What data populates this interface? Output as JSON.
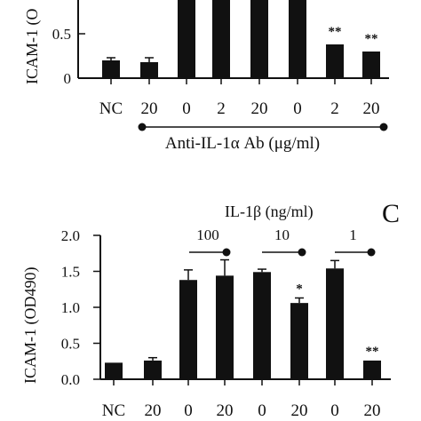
{
  "chart_data": [
    {
      "panel": "top (cropped)",
      "type": "bar",
      "ylabel": "ICAM-1 (O",
      "yticks": [
        "0.5",
        "0"
      ],
      "categories": [
        "NC",
        "20",
        "0",
        "2",
        "20",
        "0",
        "2",
        "20"
      ],
      "values": [
        0.2,
        0.18,
        1.0,
        0.95,
        0.88,
        0.9,
        0.38,
        0.3
      ],
      "errors": [
        0.03,
        0.05,
        0.0,
        0.0,
        0.02,
        0.04,
        0.0,
        0.0
      ],
      "annotations": [
        {
          "index": 6,
          "text": "**"
        },
        {
          "index": 7,
          "text": "**"
        }
      ],
      "xlabel": "Anti-IL-1α Ab (μg/ml)",
      "ylim": [
        0,
        1.0
      ]
    },
    {
      "panel": "C",
      "panel_label": "C",
      "type": "bar",
      "ylabel": "ICAM-1 (OD490)",
      "yticks": [
        "2.0",
        "1.5",
        "1.0",
        "0.5",
        "0.0"
      ],
      "top_label": "IL-1β  (ng/ml)",
      "groups": [
        {
          "label": "100"
        },
        {
          "label": "10"
        },
        {
          "label": "1"
        }
      ],
      "categories": [
        "NC",
        "20",
        "0",
        "20",
        "0",
        "20",
        "0",
        "20"
      ],
      "values": [
        0.23,
        0.26,
        1.38,
        1.44,
        1.49,
        1.06,
        1.54,
        0.26
      ],
      "errors": [
        0.0,
        0.04,
        0.14,
        0.22,
        0.04,
        0.07,
        0.11,
        0.0
      ],
      "annotations": [
        {
          "index": 5,
          "text": "*"
        },
        {
          "index": 7,
          "text": "**"
        }
      ],
      "ylim": [
        0,
        2.0
      ]
    }
  ]
}
